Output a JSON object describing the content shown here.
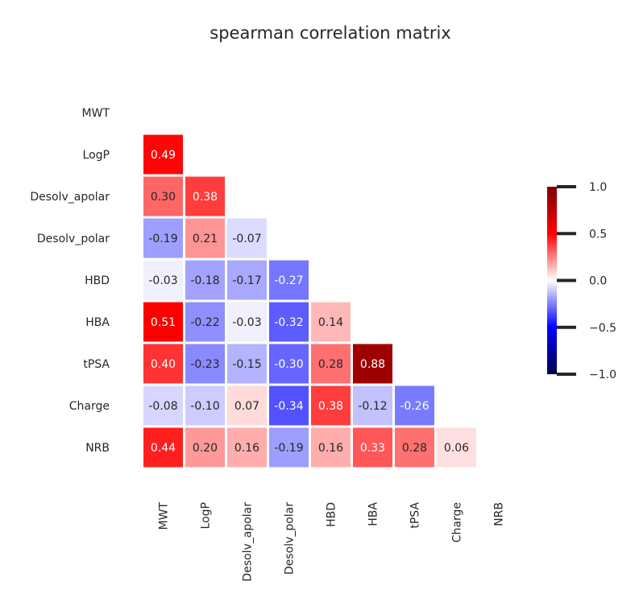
{
  "chart_data": {
    "type": "heatmap",
    "title": "spearman correlation matrix",
    "xlabel": "",
    "ylabel": "",
    "variables": [
      "MWT",
      "LogP",
      "Desolv_apolar",
      "Desolv_polar",
      "HBD",
      "HBA",
      "tPSA",
      "Charge",
      "NRB"
    ],
    "mask": "upper-triangle-including-diagonal",
    "values": [
      [
        null,
        null,
        null,
        null,
        null,
        null,
        null,
        null,
        null
      ],
      [
        0.49,
        null,
        null,
        null,
        null,
        null,
        null,
        null,
        null
      ],
      [
        0.3,
        0.38,
        null,
        null,
        null,
        null,
        null,
        null,
        null
      ],
      [
        -0.19,
        0.21,
        -0.07,
        null,
        null,
        null,
        null,
        null,
        null
      ],
      [
        -0.03,
        -0.18,
        -0.17,
        -0.27,
        null,
        null,
        null,
        null,
        null
      ],
      [
        0.51,
        -0.22,
        -0.03,
        -0.32,
        0.14,
        null,
        null,
        null,
        null
      ],
      [
        0.4,
        -0.23,
        -0.15,
        -0.3,
        0.28,
        0.88,
        null,
        null,
        null
      ],
      [
        -0.08,
        -0.1,
        0.07,
        -0.34,
        0.38,
        -0.12,
        -0.26,
        null,
        null
      ],
      [
        0.44,
        0.2,
        0.16,
        -0.19,
        0.16,
        0.33,
        0.28,
        0.06,
        null
      ]
    ],
    "labels": [
      [
        null,
        null,
        null,
        null,
        null,
        null,
        null,
        null,
        null
      ],
      [
        "0.49",
        null,
        null,
        null,
        null,
        null,
        null,
        null,
        null
      ],
      [
        "0.30",
        "0.38",
        null,
        null,
        null,
        null,
        null,
        null,
        null
      ],
      [
        "-0.19",
        "0.21",
        "-0.07",
        null,
        null,
        null,
        null,
        null,
        null
      ],
      [
        "-0.03",
        "-0.18",
        "-0.17",
        "-0.27",
        null,
        null,
        null,
        null,
        null
      ],
      [
        "0.51",
        "-0.22",
        "-0.03",
        "-0.32",
        "0.14",
        null,
        null,
        null,
        null
      ],
      [
        "0.40",
        "-0.23",
        "-0.15",
        "-0.30",
        "0.28",
        "0.88",
        null,
        null,
        null
      ],
      [
        "-0.08",
        "-0.10",
        "0.07",
        "-0.34",
        "0.38",
        "-0.12",
        "-0.26",
        null,
        null
      ],
      [
        "0.44",
        "0.20",
        "0.16",
        "-0.19",
        "0.16",
        "0.33",
        "0.28",
        "0.06",
        null
      ]
    ],
    "colormap": "seismic",
    "vmin": -1.0,
    "vmax": 1.0,
    "colorbar": {
      "ticks": [
        1.0,
        0.5,
        0.0,
        -0.5,
        -1.0
      ],
      "tick_labels": [
        "1.0",
        "0.5",
        "0.0",
        "−0.5",
        "−1.0"
      ],
      "placement": "right"
    },
    "grid": false
  }
}
